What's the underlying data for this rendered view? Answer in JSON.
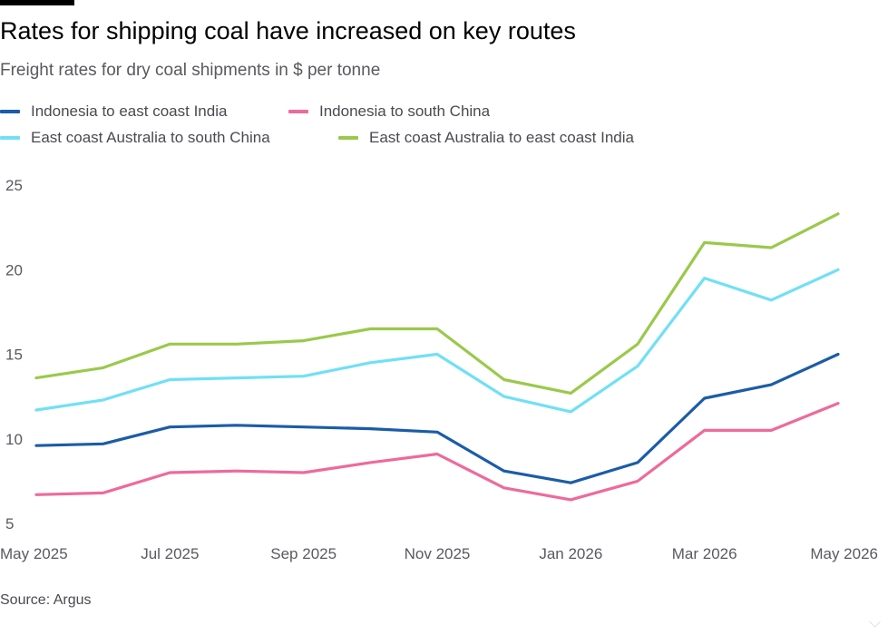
{
  "chart_data": {
    "type": "line",
    "title": "Rates for shipping coal have increased on key routes",
    "subtitle": "Freight rates for dry coal shipments in $ per tonne",
    "source": "Source: Argus",
    "xlabel": "",
    "ylabel": "",
    "ylim": [
      5,
      25
    ],
    "yticks": [
      "25",
      "20",
      "15",
      "10",
      "5"
    ],
    "grid": false,
    "legend_position": "top",
    "x": [
      "May 2025",
      "Jun 2025",
      "Jul 2025",
      "Aug 2025",
      "Sep 2025",
      "Oct 2025",
      "Nov 2025",
      "Dec 2025",
      "Jan 2026",
      "Feb 2026",
      "Mar 2026",
      "Apr 2026",
      "May 2026"
    ],
    "xtick_labels": [
      "May 2025",
      "Jul 2025",
      "Sep 2025",
      "Nov 2025",
      "Jan 2026",
      "Mar 2026",
      "May 2026"
    ],
    "series": [
      {
        "name": "Indonesia to east coast India",
        "color": "#1b5ca8",
        "values": [
          9.6,
          9.7,
          10.7,
          10.8,
          10.7,
          10.6,
          10.4,
          8.1,
          7.4,
          8.6,
          12.4,
          13.2,
          15.0
        ]
      },
      {
        "name": "Indonesia to south China",
        "color": "#ee6a9b",
        "values": [
          6.7,
          6.8,
          8.0,
          8.1,
          8.0,
          8.6,
          9.1,
          7.1,
          6.4,
          7.5,
          10.5,
          10.5,
          12.1
        ]
      },
      {
        "name": "East coast Australia to south China",
        "color": "#70e0f5",
        "values": [
          11.7,
          12.3,
          13.5,
          13.6,
          13.7,
          14.5,
          15.0,
          12.5,
          11.6,
          14.3,
          19.5,
          18.2,
          20.0
        ]
      },
      {
        "name": "East coast Australia to east coast India",
        "color": "#9ac94b",
        "values": [
          13.6,
          14.2,
          15.6,
          15.6,
          15.8,
          16.5,
          16.5,
          13.5,
          12.7,
          15.6,
          21.6,
          21.3,
          23.3
        ]
      }
    ]
  }
}
